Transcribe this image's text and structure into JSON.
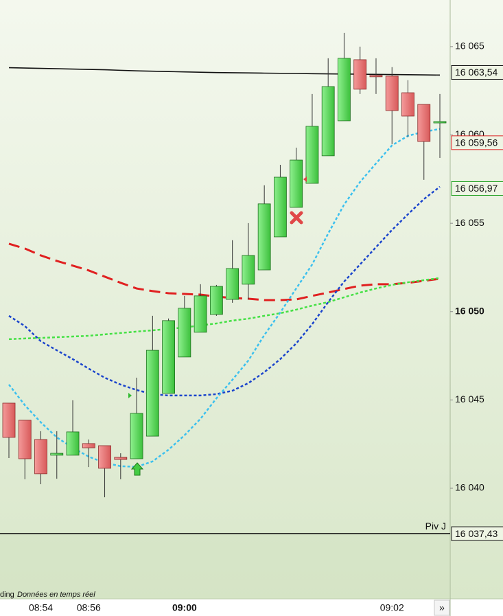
{
  "chart_data": {
    "type": "candlestick",
    "categories": [
      null,
      null,
      "08:54",
      null,
      null,
      "08:56",
      null,
      null,
      null,
      null,
      null,
      "09:00",
      null,
      null,
      null,
      null,
      null,
      null,
      null,
      null,
      null,
      null,
      null,
      null,
      "09:02",
      null,
      null,
      null
    ],
    "open": [
      16044.82,
      16043.85,
      16042.76,
      16041.87,
      16041.87,
      16042.53,
      16042.41,
      16041.75,
      16041.67,
      16042.95,
      16045.37,
      16047.43,
      16048.83,
      16049.84,
      16050.69,
      16051.55,
      16052.36,
      16054.23,
      16055.9,
      16057.26,
      16058.82,
      16060.8,
      16064.26,
      16063.37,
      16063.33,
      16062.39,
      16061.73,
      16060.68
    ],
    "high": [
      16044.82,
      16043.85,
      16043.23,
      16043.23,
      16044.98,
      16042.76,
      16042.41,
      16041.98,
      16046.26,
      16049.76,
      16049.61,
      16050.89,
      16051.55,
      16051.51,
      16054.04,
      16055.01,
      16057.15,
      16058.31,
      16059.28,
      16062.32,
      16064.34,
      16065.78,
      16065.0,
      16064.34,
      16063.84,
      16063.1,
      16061.73,
      16062.32
    ],
    "low": [
      16041.71,
      16040.51,
      16040.23,
      16040.54,
      16041.87,
      16041.2,
      16039.49,
      16040.51,
      16041.67,
      16042.95,
      16045.37,
      16047.43,
      16048.83,
      16049.76,
      16050.5,
      16050.69,
      16052.36,
      16054.23,
      16055.9,
      16057.26,
      16058.82,
      16060.8,
      16062.32,
      16062.32,
      16059.48,
      16059.87,
      16057.46,
      16058.7
    ],
    "close": [
      16042.88,
      16041.67,
      16040.82,
      16041.98,
      16043.19,
      16042.29,
      16041.13,
      16041.63,
      16044.24,
      16047.81,
      16049.49,
      16050.19,
      16050.89,
      16051.43,
      16052.44,
      16053.18,
      16056.1,
      16057.61,
      16058.58,
      16060.49,
      16062.74,
      16064.34,
      16062.59,
      16063.33,
      16061.38,
      16061.07,
      16059.63,
      16060.76
    ],
    "up_color": "#5cd65c",
    "down_color": "#e87474",
    "ylim": [
      16033.74,
      16067.64
    ],
    "yticks": [
      {
        "value": 16040,
        "label": "16 040"
      },
      {
        "value": 16045,
        "label": "16 045"
      },
      {
        "value": 16050,
        "label": "16 050"
      },
      {
        "value": 16055,
        "label": "16 055"
      },
      {
        "value": 16060,
        "label": "16 060"
      },
      {
        "value": 16065,
        "label": "16 065"
      }
    ],
    "series": [
      {
        "color": "#111111",
        "dash": "none",
        "width": 1.6,
        "values": [
          16063.81,
          16063.79,
          16063.77,
          16063.75,
          16063.73,
          16063.71,
          16063.69,
          16063.66,
          16063.63,
          16063.61,
          16063.59,
          16063.57,
          16063.55,
          16063.53,
          16063.52,
          16063.51,
          16063.5,
          16063.49,
          16063.48,
          16063.47,
          16063.46,
          16063.45,
          16063.44,
          16063.43,
          16063.42,
          16063.41,
          16063.4,
          16063.39
        ]
      },
      {
        "color": "#e02020",
        "dash": "16 8",
        "width": 3,
        "values": [
          16053.84,
          16053.57,
          16053.18,
          16052.87,
          16052.6,
          16052.33,
          16051.98,
          16051.63,
          16051.31,
          16051.16,
          16051.04,
          16051.0,
          16050.96,
          16050.85,
          16050.77,
          16050.73,
          16050.65,
          16050.65,
          16050.69,
          16050.89,
          16051.08,
          16051.28,
          16051.47,
          16051.55,
          16051.55,
          16051.63,
          16051.74,
          16051.86
        ]
      },
      {
        "color": "#44e044",
        "dash": "4 3",
        "width": 2.5,
        "values": [
          16048.44,
          16048.48,
          16048.51,
          16048.55,
          16048.59,
          16048.63,
          16048.71,
          16048.79,
          16048.87,
          16048.94,
          16049.02,
          16049.1,
          16049.22,
          16049.33,
          16049.49,
          16049.6,
          16049.76,
          16049.91,
          16050.11,
          16050.34,
          16050.54,
          16050.81,
          16051.08,
          16051.31,
          16051.51,
          16051.66,
          16051.78,
          16051.9
        ]
      },
      {
        "color": "#1a44cc",
        "dash": "4 3",
        "width": 2.5,
        "values": [
          16049.76,
          16049.18,
          16048.32,
          16047.81,
          16047.31,
          16046.77,
          16046.26,
          16045.87,
          16045.56,
          16045.33,
          16045.25,
          16045.25,
          16045.25,
          16045.33,
          16045.52,
          16045.95,
          16046.57,
          16047.31,
          16048.2,
          16049.29,
          16050.54,
          16051.7,
          16052.67,
          16053.65,
          16054.62,
          16055.51,
          16056.37,
          16057.07
        ]
      },
      {
        "color": "#3cc0ee",
        "dash": "4 3",
        "width": 2.5,
        "values": [
          16045.87,
          16044.7,
          16043.73,
          16042.88,
          16042.29,
          16041.79,
          16041.44,
          16041.25,
          16041.21,
          16041.52,
          16042.18,
          16043.0,
          16043.93,
          16045.09,
          16046.14,
          16047.23,
          16048.67,
          16049.95,
          16051.31,
          16052.67,
          16054.42,
          16056.06,
          16057.34,
          16058.39,
          16059.41,
          16059.95,
          16060.18,
          16060.34
        ]
      }
    ],
    "price_tags": [
      {
        "value": 16063.54,
        "label": "16 063,54",
        "color": "#111111"
      },
      {
        "value": 16059.56,
        "label": "16 059,56",
        "color": "#dd2222"
      },
      {
        "value": 16056.97,
        "label": "16 056,97",
        "color": "#22a022"
      },
      {
        "value": 16037.43,
        "label": "16 037,43",
        "color": "#111111"
      }
    ],
    "pivot": {
      "name": "Piv J",
      "value": 16037.43
    },
    "footer": {
      "source": "ding",
      "status": "Données en temps réel"
    },
    "scroll_button": "»"
  }
}
